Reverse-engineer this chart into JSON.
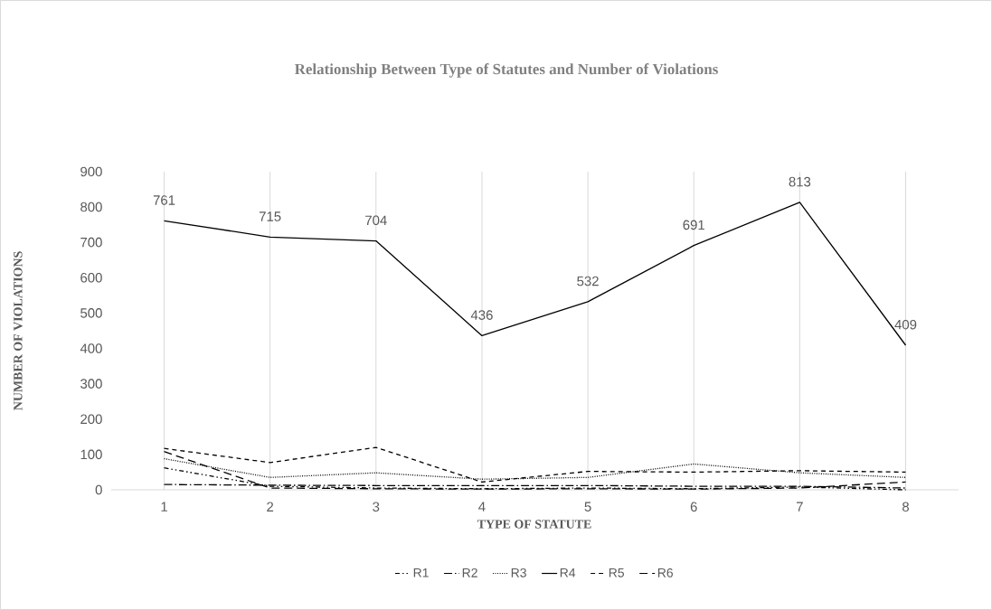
{
  "chart_data": {
    "type": "line",
    "title": "Relationship Between Type of Statutes and Number of Violations",
    "xlabel": "TYPE OF STATUTE",
    "ylabel": "NUMBER OF VIOLATIONS",
    "categories": [
      "1",
      "2",
      "3",
      "4",
      "5",
      "6",
      "7",
      "8"
    ],
    "series": [
      {
        "name": "R1",
        "color": "#000000",
        "line_style": "dashdotdotted",
        "values": [
          62,
          10,
          5,
          3,
          5,
          3,
          8,
          0
        ]
      },
      {
        "name": "R2",
        "color": "#000000",
        "line_style": "dashdotted",
        "values": [
          15,
          13,
          12,
          12,
          12,
          10,
          10,
          5
        ]
      },
      {
        "name": "R3",
        "color": "#000000",
        "line_style": "dotted",
        "values": [
          88,
          35,
          48,
          30,
          35,
          73,
          48,
          35
        ]
      },
      {
        "name": "R4",
        "color": "#000000",
        "line_style": "solid",
        "values": [
          761,
          715,
          704,
          436,
          532,
          691,
          813,
          409
        ],
        "value_labels": [
          "761",
          "715",
          "704",
          "436",
          "532",
          "691",
          "813",
          "409"
        ]
      },
      {
        "name": "R5",
        "color": "#000000",
        "line_style": "dashed",
        "values": [
          117,
          77,
          120,
          22,
          52,
          50,
          54,
          50
        ]
      },
      {
        "name": "R6",
        "color": "#000000",
        "line_style": "loosely dashed",
        "values": [
          108,
          5,
          3,
          2,
          3,
          2,
          5,
          22
        ]
      }
    ],
    "ylim": [
      0,
      900
    ],
    "yticks": [
      0,
      100,
      200,
      300,
      400,
      500,
      600,
      700,
      800,
      900
    ],
    "grid": "x",
    "legend": "bottom",
    "marker": "none"
  }
}
